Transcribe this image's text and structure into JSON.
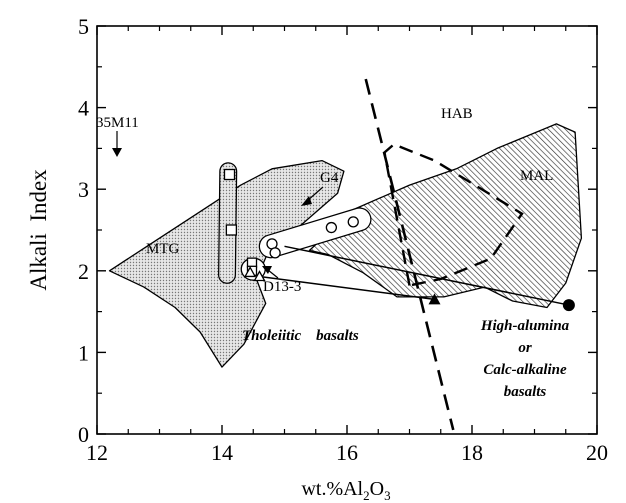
{
  "chart_data": {
    "type": "scatter",
    "title": "",
    "xlabel": {
      "prefix": "wt.%Al",
      "sub1": "2",
      "mid": "O",
      "sub2": "3"
    },
    "ylabel": "Alkali  Index",
    "xlim": [
      12,
      20
    ],
    "ylim": [
      0,
      5
    ],
    "xticks": [
      "12",
      "14",
      "16",
      "18",
      "20"
    ],
    "yticks": [
      "0",
      "1",
      "2",
      "3",
      "4",
      "5"
    ],
    "grid": false,
    "fields": [
      {
        "name": "MTG",
        "label": "MTG",
        "fill": "dots",
        "polygon": [
          [
            12.2,
            2.0
          ],
          [
            12.8,
            2.3
          ],
          [
            13.6,
            2.7
          ],
          [
            14.3,
            3.05
          ],
          [
            14.8,
            3.25
          ],
          [
            15.6,
            3.35
          ],
          [
            15.95,
            3.22
          ],
          [
            15.85,
            2.95
          ],
          [
            15.25,
            2.55
          ],
          [
            14.75,
            2.25
          ],
          [
            14.55,
            1.9
          ],
          [
            14.7,
            1.6
          ],
          [
            14.35,
            1.1
          ],
          [
            14.0,
            0.82
          ],
          [
            13.65,
            1.25
          ],
          [
            13.25,
            1.55
          ],
          [
            12.75,
            1.8
          ]
        ]
      },
      {
        "name": "MAL",
        "label": "MAL",
        "fill": "hatch",
        "polygon": [
          [
            15.4,
            2.25
          ],
          [
            16.1,
            2.75
          ],
          [
            17.0,
            3.05
          ],
          [
            17.75,
            3.25
          ],
          [
            18.4,
            3.5
          ],
          [
            19.35,
            3.8
          ],
          [
            19.65,
            3.7
          ],
          [
            19.75,
            2.4
          ],
          [
            19.5,
            1.85
          ],
          [
            19.2,
            1.55
          ],
          [
            18.65,
            1.63
          ],
          [
            18.2,
            1.8
          ],
          [
            17.55,
            1.68
          ],
          [
            16.8,
            1.68
          ],
          [
            16.25,
            1.98
          ],
          [
            15.7,
            2.2
          ]
        ]
      }
    ],
    "hab_outline": {
      "label": "HAB",
      "path": [
        [
          17.0,
          1.82
        ],
        [
          16.6,
          3.45
        ],
        [
          16.75,
          3.55
        ],
        [
          17.4,
          3.35
        ],
        [
          18.8,
          2.7
        ],
        [
          18.3,
          2.15
        ],
        [
          17.5,
          1.9
        ],
        [
          17.0,
          1.82
        ]
      ]
    },
    "dividing_line": [
      [
        16.3,
        4.35
      ],
      [
        17.7,
        0.05
      ]
    ],
    "groups": [
      {
        "name": "35M11",
        "label": "35M11",
        "marker": "square",
        "points": [
          [
            14.12,
            3.18
          ],
          [
            14.15,
            2.5
          ]
        ],
        "envelope": [
          [
            14.1,
            3.22
          ],
          [
            14.08,
            1.95
          ]
        ]
      },
      {
        "name": "D13-3",
        "label": "D13-3",
        "marker": "square-triangle",
        "squares": [
          [
            14.48,
            2.1
          ],
          [
            14.48,
            2.0
          ]
        ],
        "triangles": [
          [
            14.45,
            1.98
          ],
          [
            14.6,
            1.93
          ]
        ],
        "envelope_center": [
          14.5,
          2.02
        ]
      },
      {
        "name": "G4",
        "label": "G4",
        "marker": "circle",
        "points": [
          [
            14.8,
            2.33
          ],
          [
            14.85,
            2.22
          ],
          [
            15.75,
            2.53
          ],
          [
            16.1,
            2.6
          ]
        ],
        "envelope": [
          [
            14.78,
            2.3
          ],
          [
            16.2,
            2.63
          ]
        ]
      }
    ],
    "trends": [
      {
        "from": [
          14.6,
          1.93
        ],
        "to": [
          17.4,
          1.65
        ],
        "end_marker": "filled-triangle"
      },
      {
        "from": [
          15.0,
          2.3
        ],
        "to": [
          19.55,
          1.58
        ],
        "end_marker": "filled-circle"
      }
    ],
    "annotations": {
      "tholeiitic": "Tholeiitic    basalts",
      "high_alumina": [
        "High-alumina",
        "or",
        "Calc-alkaline",
        "basalts"
      ]
    },
    "colors": {
      "ink": "#000000",
      "background": "#ffffff",
      "dot_fill": "#d4d4d4",
      "hatch": "#333333"
    }
  }
}
